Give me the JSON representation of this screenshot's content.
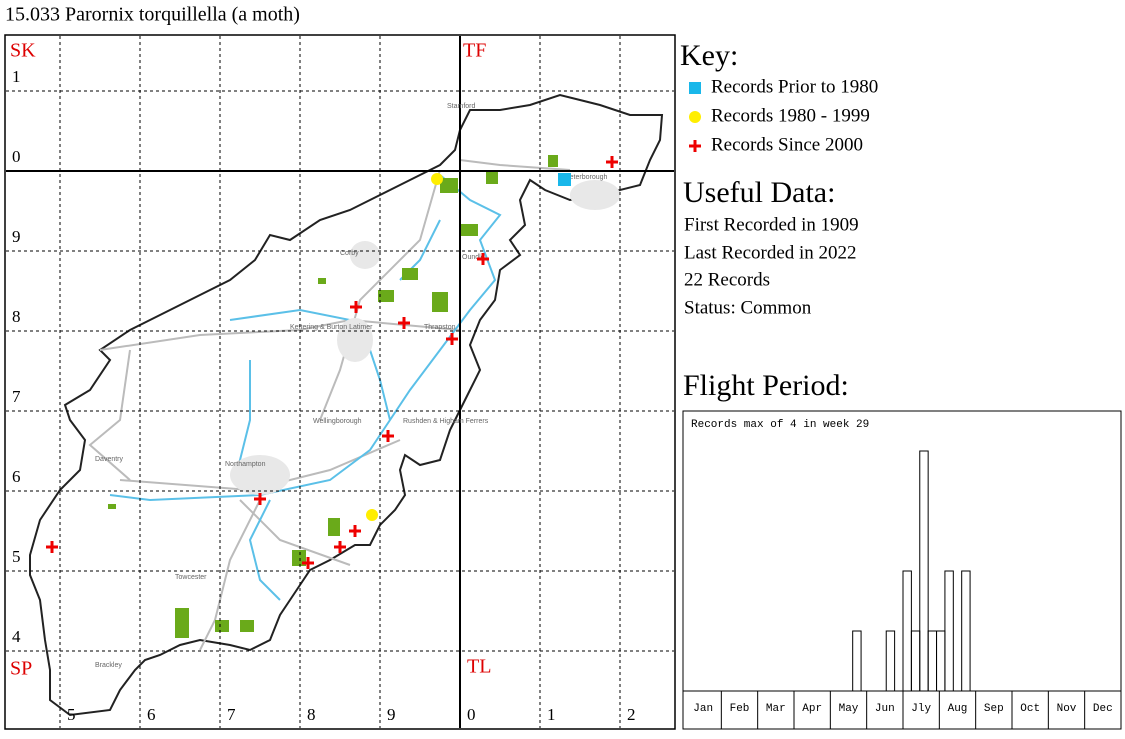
{
  "title": "15.033 Parornix torquillella (a moth)",
  "map": {
    "squares": [
      "SK",
      "TF",
      "SP",
      "TL"
    ],
    "left_labels": [
      "1",
      "0",
      "9",
      "8",
      "7",
      "6",
      "5",
      "4"
    ],
    "bottom_labels": [
      "5",
      "6",
      "7",
      "8",
      "9",
      "0",
      "1",
      "2"
    ],
    "towns": [
      "Stamford",
      "Corby",
      "Oundle",
      "Kettering & Burton Latimer",
      "Thrapston",
      "Wellingborough",
      "Rushden & Higham Ferrers",
      "Daventry",
      "Northampton",
      "Towcester",
      "Brackley",
      "Peterborough"
    ]
  },
  "key": {
    "title": "Key:",
    "items": [
      "Records Prior to 1980",
      "Records 1980 - 1999",
      "Records Since 2000"
    ]
  },
  "useful": {
    "title": "Useful Data:",
    "lines": [
      "First Recorded in 1909",
      "Last Recorded in 2022",
      "22 Records",
      "Status: Common"
    ]
  },
  "chart_data": {
    "type": "bar",
    "title": "Flight Period:",
    "annotation": "Records max of 4 in week 29",
    "months": [
      "Jan",
      "Feb",
      "Mar",
      "Apr",
      "May",
      "Jun",
      "Jly",
      "Aug",
      "Sep",
      "Oct",
      "Nov",
      "Dec"
    ],
    "x": [
      21,
      25,
      27,
      28,
      29,
      30,
      31,
      32,
      34
    ],
    "values": [
      1,
      1,
      2,
      1,
      4,
      1,
      1,
      2,
      2
    ],
    "xlim": [
      1,
      53
    ],
    "ylim": [
      0,
      4
    ]
  }
}
